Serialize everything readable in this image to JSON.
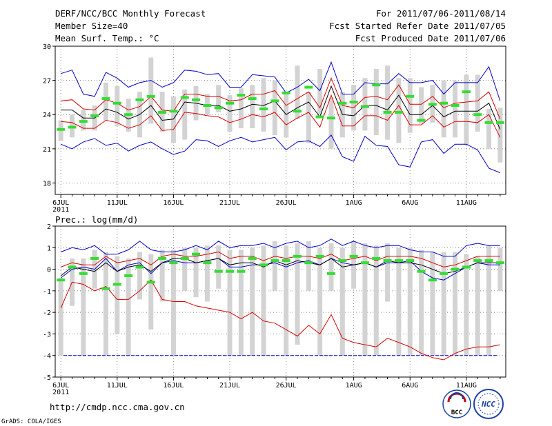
{
  "header": {
    "title": "DERF/NCC/BCC Monthly Forecast",
    "member_size": "Member Size=40",
    "variable": "Mean Surf. Temp.: °C",
    "period": "For 2011/07/06-2011/08/14",
    "refer_date": "Fcst Started Refer Date 2011/07/05",
    "produced_date": "Fcst Produced Date 2011/07/06"
  },
  "footer": {
    "url": "http://cmdp.ncc.cma.gov.cn",
    "credit": "GrADS: COLA/IGES",
    "logo1": "BCC",
    "logo2": "NCC"
  },
  "colors": {
    "range_bar": "#d3d3d3",
    "median": "#33dd33",
    "mean": "#000000",
    "spread": "#dd0000",
    "envelope": "#0000cc",
    "baseline": "#0000cc"
  },
  "chart_data": [
    {
      "type": "box",
      "title": "Mean Surf. Temp.: °C",
      "ylim": [
        17,
        30
      ],
      "yticks": [
        18,
        21,
        24,
        27,
        30
      ],
      "x_labels": [
        {
          "day": 0,
          "label": "6JUL",
          "sub": "2011"
        },
        {
          "day": 5,
          "label": "11JUL",
          "sub": ""
        },
        {
          "day": 10,
          "label": "16JUL",
          "sub": ""
        },
        {
          "day": 15,
          "label": "21JUL",
          "sub": ""
        },
        {
          "day": 20,
          "label": "26JUL",
          "sub": ""
        },
        {
          "day": 26,
          "label": "1AUG",
          "sub": ""
        },
        {
          "day": 31,
          "label": "6AUG",
          "sub": ""
        },
        {
          "day": 36,
          "label": "11AUG",
          "sub": ""
        }
      ],
      "days": 40,
      "bar_low": [
        21.7,
        22.0,
        22.6,
        22.6,
        23.5,
        23.0,
        22.5,
        22.0,
        23.2,
        22.5,
        21.5,
        21.8,
        23.5,
        24.0,
        24.2,
        22.5,
        22.8,
        22.8,
        22.5,
        22.2,
        22.0,
        23.6,
        21.5,
        24.0,
        21.0,
        22.0,
        22.6,
        22.6,
        22.2,
        21.8,
        21.5,
        22.4,
        23.2,
        23.3,
        22.0,
        22.0,
        21.3,
        22.5,
        21.0,
        19.8
      ],
      "bar_high": [
        23.5,
        24.0,
        24.4,
        24.8,
        26.8,
        26.5,
        25.4,
        26.0,
        29.0,
        26.0,
        25.6,
        26.2,
        26.5,
        25.8,
        26.6,
        25.7,
        26.3,
        26.6,
        27.2,
        27.0,
        26.0,
        28.3,
        26.0,
        28.0,
        25.5,
        26.0,
        26.6,
        27.2,
        28.0,
        28.3,
        27.2,
        27.2,
        26.4,
        26.6,
        27.0,
        27.0,
        27.5,
        27.5,
        24.5,
        24.6
      ],
      "median": [
        22.7,
        22.9,
        23.4,
        23.9,
        25.4,
        25.0,
        24.0,
        25.3,
        25.6,
        24.2,
        24.3,
        25.5,
        25.3,
        24.8,
        24.6,
        25.0,
        25.7,
        25.4,
        24.5,
        25.2,
        25.9,
        24.3,
        26.4,
        23.8,
        23.7,
        25.0,
        25.1,
        24.7,
        26.6,
        24.2,
        24.2,
        25.6,
        23.5,
        24.9,
        25.0,
        24.8,
        26.0,
        24.0,
        23.3,
        23.3
      ],
      "mean": [
        24.4,
        24.4,
        23.7,
        23.7,
        24.5,
        24.2,
        23.6,
        24.0,
        24.8,
        23.5,
        23.6,
        25.1,
        25.0,
        24.8,
        24.8,
        24.3,
        24.5,
        24.9,
        24.8,
        25.2,
        24.0,
        24.6,
        25.1,
        23.8,
        26.5,
        24.0,
        23.9,
        24.8,
        24.8,
        24.4,
        25.7,
        24.0,
        24.0,
        24.8,
        23.8,
        24.3,
        24.3,
        24.3,
        25.0,
        22.7
      ],
      "upper": [
        25.2,
        25.3,
        24.5,
        24.4,
        25.3,
        25.0,
        24.4,
        24.7,
        25.6,
        24.4,
        24.3,
        25.8,
        25.8,
        25.6,
        25.6,
        25.2,
        25.3,
        25.8,
        25.8,
        26.1,
        24.8,
        25.4,
        26.0,
        24.6,
        27.2,
        24.8,
        24.6,
        25.5,
        25.6,
        25.3,
        26.6,
        24.9,
        24.9,
        25.6,
        24.6,
        25.0,
        25.1,
        25.2,
        26.0,
        23.6
      ],
      "lower": [
        23.4,
        23.3,
        22.8,
        22.8,
        23.5,
        23.3,
        22.8,
        23.1,
        23.9,
        22.6,
        22.7,
        24.2,
        24.1,
        23.9,
        23.8,
        23.3,
        23.6,
        24.0,
        23.8,
        24.2,
        23.1,
        23.7,
        24.2,
        22.9,
        25.7,
        23.0,
        23.0,
        23.9,
        23.9,
        23.5,
        24.8,
        23.1,
        23.1,
        23.9,
        22.9,
        23.4,
        23.4,
        23.3,
        24.0,
        22.0
      ],
      "env_high": [
        27.6,
        27.9,
        25.8,
        25.6,
        27.7,
        27.2,
        26.4,
        26.8,
        27.0,
        26.4,
        26.8,
        27.9,
        27.8,
        27.5,
        27.6,
        26.4,
        26.4,
        27.5,
        27.4,
        27.3,
        25.9,
        26.4,
        27.1,
        26.1,
        28.6,
        25.8,
        25.8,
        26.8,
        26.7,
        26.7,
        27.6,
        26.8,
        26.8,
        27.0,
        25.8,
        26.8,
        26.8,
        26.8,
        28.2,
        25.2
      ],
      "env_low": [
        21.4,
        21.0,
        21.6,
        21.9,
        21.3,
        21.5,
        20.8,
        21.3,
        21.6,
        21.0,
        20.5,
        20.8,
        21.8,
        21.7,
        21.2,
        21.7,
        22.0,
        21.6,
        21.8,
        22.0,
        20.9,
        21.6,
        21.7,
        21.2,
        22.2,
        20.3,
        19.9,
        22.1,
        21.3,
        21.2,
        19.6,
        19.4,
        21.6,
        21.8,
        20.6,
        21.4,
        21.4,
        20.9,
        19.3,
        18.9
      ]
    },
    {
      "type": "box",
      "title": "Prec.: log(mm/d)",
      "ylim": [
        -5,
        2
      ],
      "yticks": [
        -5,
        -4,
        -3,
        -2,
        -1,
        0,
        1,
        2
      ],
      "x_labels": [
        {
          "day": 0,
          "label": "6JUL",
          "sub": "2011"
        },
        {
          "day": 5,
          "label": "11JUL",
          "sub": ""
        },
        {
          "day": 10,
          "label": "16JUL",
          "sub": ""
        },
        {
          "day": 15,
          "label": "21JUL",
          "sub": ""
        },
        {
          "day": 20,
          "label": "26JUL",
          "sub": ""
        },
        {
          "day": 26,
          "label": "1AUG",
          "sub": ""
        },
        {
          "day": 31,
          "label": "6AUG",
          "sub": ""
        },
        {
          "day": 36,
          "label": "11AUG",
          "sub": ""
        }
      ],
      "days": 40,
      "baseline": -4,
      "bar_low": [
        -4.0,
        -1.7,
        -4.0,
        -0.9,
        -4.0,
        -3.0,
        -4.0,
        -1.4,
        -2.8,
        -1.5,
        -4.0,
        -1.0,
        -1.3,
        -1.5,
        -0.9,
        -4.0,
        -4.0,
        -4.0,
        -4.0,
        -1.0,
        -4.0,
        -3.5,
        -1.0,
        -4.0,
        -1.0,
        -4.0,
        -0.9,
        -4.0,
        -4.0,
        -1.5,
        -4.0,
        -4.0,
        -4.0,
        -4.0,
        -4.0,
        -4.0,
        -4.0,
        -4.0,
        -4.0,
        -1.0
      ],
      "bar_high": [
        -0.4,
        0.5,
        0.5,
        0.9,
        0.8,
        0.6,
        0.5,
        0.8,
        0.7,
        0.9,
        0.9,
        1.0,
        1.0,
        1.1,
        1.1,
        0.9,
        0.9,
        1.0,
        1.1,
        1.3,
        1.1,
        1.2,
        1.3,
        1.0,
        1.2,
        1.0,
        1.3,
        1.2,
        1.1,
        1.2,
        1.0,
        1.0,
        0.9,
        0.8,
        0.8,
        0.8,
        0.7,
        0.6,
        1.1,
        1.0
      ],
      "median": [
        -0.5,
        0.1,
        -0.2,
        0.5,
        -0.9,
        -0.7,
        -0.3,
        0.1,
        -0.6,
        0.5,
        0.3,
        0.5,
        0.7,
        0.3,
        -0.1,
        -0.1,
        -0.1,
        0.5,
        0.2,
        0.4,
        0.4,
        0.6,
        0.3,
        0.6,
        -0.2,
        0.4,
        0.6,
        0.3,
        0.5,
        0.4,
        0.4,
        0.4,
        -0.1,
        -0.5,
        -0.2,
        0.0,
        0.1,
        0.4,
        0.4,
        0.3
      ],
      "mean": [
        -0.3,
        0.1,
        0.0,
        -0.1,
        0.3,
        -0.1,
        0.1,
        0.2,
        -0.1,
        0.3,
        0.5,
        0.5,
        0.3,
        0.4,
        0.5,
        0.2,
        0.3,
        0.3,
        0.1,
        0.4,
        0.2,
        0.4,
        0.3,
        0.2,
        0.5,
        0.1,
        0.2,
        0.3,
        0.1,
        0.4,
        0.3,
        0.3,
        0.2,
        0.0,
        -0.2,
        -0.1,
        0.1,
        0.3,
        0.3,
        0.3
      ],
      "upper": [
        0.1,
        0.3,
        0.2,
        0.2,
        0.6,
        0.3,
        0.4,
        0.5,
        0.2,
        0.6,
        0.7,
        0.6,
        0.6,
        0.7,
        0.8,
        0.5,
        0.6,
        0.6,
        0.4,
        0.6,
        0.5,
        0.6,
        0.6,
        0.5,
        0.7,
        0.4,
        0.5,
        0.6,
        0.4,
        0.6,
        0.6,
        0.6,
        0.5,
        0.3,
        0.1,
        0.2,
        0.4,
        0.6,
        0.6,
        0.6
      ],
      "lower": [
        -1.8,
        -0.6,
        -0.7,
        -1.0,
        -0.8,
        -1.4,
        -1.4,
        -1.0,
        -0.5,
        -1.4,
        -1.5,
        -1.5,
        -1.7,
        -1.8,
        -1.9,
        -2.0,
        -2.3,
        -2.0,
        -2.4,
        -2.5,
        -2.8,
        -3.1,
        -2.6,
        -3.0,
        -2.1,
        -3.2,
        -3.4,
        -3.5,
        -3.6,
        -3.2,
        -3.4,
        -3.6,
        -3.9,
        -4.1,
        -4.2,
        -3.9,
        -3.7,
        -3.6,
        -3.6,
        -3.5
      ],
      "env_high": [
        0.8,
        1.0,
        0.9,
        1.1,
        0.7,
        0.7,
        0.9,
        1.3,
        0.9,
        0.8,
        0.8,
        0.9,
        1.1,
        0.9,
        1.3,
        1.0,
        1.1,
        1.1,
        1.2,
        1.0,
        1.2,
        1.3,
        1.0,
        1.1,
        1.4,
        1.1,
        1.3,
        1.1,
        1.0,
        1.1,
        1.1,
        0.9,
        0.8,
        0.8,
        0.6,
        0.6,
        1.1,
        1.2,
        1.1,
        1.1
      ],
      "env_low": [
        -0.4,
        0.0,
        0.1,
        0.0,
        0.5,
        -0.1,
        0.2,
        0.3,
        -0.2,
        0.3,
        0.4,
        0.3,
        0.3,
        0.4,
        0.5,
        0.1,
        0.1,
        0.2,
        0.2,
        0.3,
        0.1,
        0.3,
        0.4,
        0.2,
        0.5,
        0.3,
        0.2,
        0.3,
        0.1,
        0.3,
        0.3,
        0.4,
        -0.1,
        -0.4,
        -0.5,
        -0.2,
        0.1,
        0.3,
        0.2,
        0.2
      ]
    }
  ]
}
